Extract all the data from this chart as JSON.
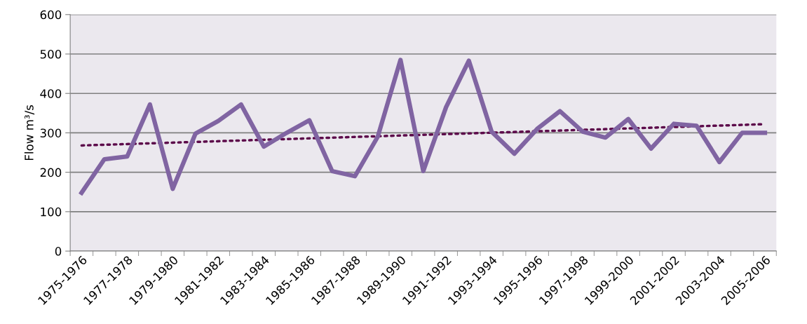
{
  "chart_data": {
    "type": "line",
    "ylabel": "Flow m³/s",
    "categories": [
      "1975-1976",
      null,
      "1977-1978",
      null,
      "1979-1980",
      null,
      "1981-1982",
      null,
      "1983-1984",
      null,
      "1985-1986",
      null,
      "1987-1988",
      null,
      "1989-1990",
      null,
      "1991-1992",
      null,
      "1993-1994",
      null,
      "1995-1996",
      null,
      "1997-1998",
      null,
      "1999-2000",
      null,
      "2001-2002",
      null,
      "2003-2004",
      null,
      "2005-2006"
    ],
    "series": [
      {
        "color": "#8064a2",
        "line_style": "solid",
        "values": [
          148,
          233,
          240,
          372,
          158,
          298,
          330,
          372,
          265,
          300,
          332,
          203,
          190,
          290,
          485,
          203,
          365,
          483,
          303,
          247,
          310,
          355,
          303,
          288,
          335,
          260,
          323,
          318,
          226,
          300,
          300
        ]
      },
      {
        "type": "line",
        "color": "#5c0a4a",
        "line_style": "dotted",
        "values": [
          268,
          null,
          null,
          null,
          null,
          null,
          null,
          null,
          null,
          null,
          null,
          null,
          null,
          null,
          null,
          null,
          null,
          null,
          null,
          null,
          null,
          null,
          null,
          null,
          null,
          null,
          null,
          null,
          null,
          null,
          322
        ]
      }
    ],
    "ylim": [
      0,
      600
    ],
    "yticks": [
      0,
      100,
      200,
      300,
      400,
      500,
      600
    ],
    "grid": "y",
    "legend": false
  }
}
